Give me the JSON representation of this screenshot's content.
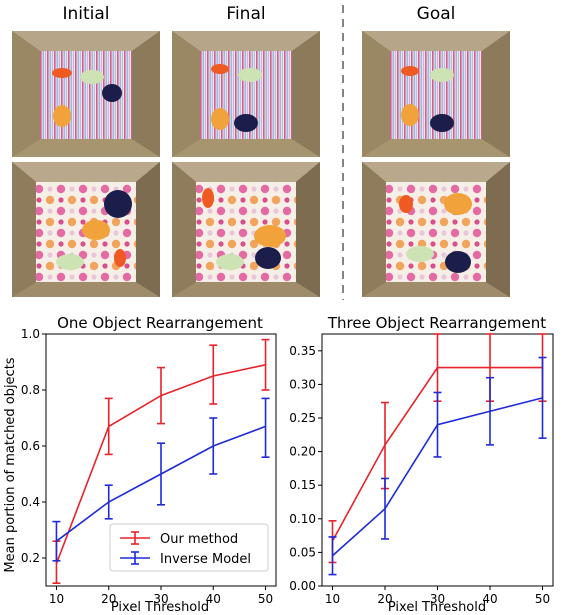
{
  "columns": {
    "initial": "Initial",
    "final": "Final",
    "goal": "Goal"
  },
  "colors": {
    "our_method": "#e8222a",
    "inverse_model": "#1f2bd8"
  },
  "chart_data": [
    {
      "type": "line",
      "title": "One Object Rearrangement",
      "xlabel": "Pixel Threshold",
      "ylabel": "Mean portion of matched objects",
      "x": [
        10,
        20,
        30,
        40,
        50
      ],
      "xlim": [
        8,
        52
      ],
      "ylim": [
        0.1,
        1.0
      ],
      "yticks": [
        0.2,
        0.4,
        0.6,
        0.8,
        1.0
      ],
      "ytick_labels": [
        "0.2",
        "0.4",
        "0.6",
        "0.8",
        "1.0"
      ],
      "legend": "bottom-right",
      "series": [
        {
          "name": "Our method",
          "color": "#e8222a",
          "values": [
            0.18,
            0.67,
            0.78,
            0.85,
            0.89
          ],
          "lower": [
            0.11,
            0.57,
            0.68,
            0.75,
            0.8
          ],
          "upper": [
            0.26,
            0.77,
            0.88,
            0.96,
            0.98
          ]
        },
        {
          "name": "Inverse Model",
          "color": "#1f2bd8",
          "values": [
            0.26,
            0.4,
            0.5,
            0.6,
            0.67
          ],
          "lower": [
            0.19,
            0.34,
            0.39,
            0.5,
            0.56
          ],
          "upper": [
            0.33,
            0.46,
            0.61,
            0.7,
            0.77
          ]
        }
      ]
    },
    {
      "type": "line",
      "title": "Three Object Rearrangement",
      "xlabel": "Pixel Threshold",
      "ylabel": "",
      "x": [
        10,
        20,
        30,
        40,
        50
      ],
      "xlim": [
        8,
        52
      ],
      "ylim": [
        0.0,
        0.375
      ],
      "yticks": [
        0.0,
        0.05,
        0.1,
        0.15,
        0.2,
        0.25,
        0.3,
        0.35
      ],
      "ytick_labels": [
        "0.00",
        "0.05",
        "0.10",
        "0.15",
        "0.20",
        "0.25",
        "0.30",
        "0.35"
      ],
      "series": [
        {
          "name": "Our method",
          "color": "#e8222a",
          "values": [
            0.067,
            0.21,
            0.325,
            0.325,
            0.325
          ],
          "lower": [
            0.035,
            0.145,
            0.275,
            0.275,
            0.275
          ],
          "upper": [
            0.097,
            0.273,
            0.375,
            0.375,
            0.375
          ]
        },
        {
          "name": "Inverse Model",
          "color": "#1f2bd8",
          "values": [
            0.045,
            0.115,
            0.24,
            0.26,
            0.28
          ],
          "lower": [
            0.017,
            0.07,
            0.192,
            0.21,
            0.22
          ],
          "upper": [
            0.073,
            0.16,
            0.288,
            0.31,
            0.34
          ]
        }
      ]
    }
  ]
}
